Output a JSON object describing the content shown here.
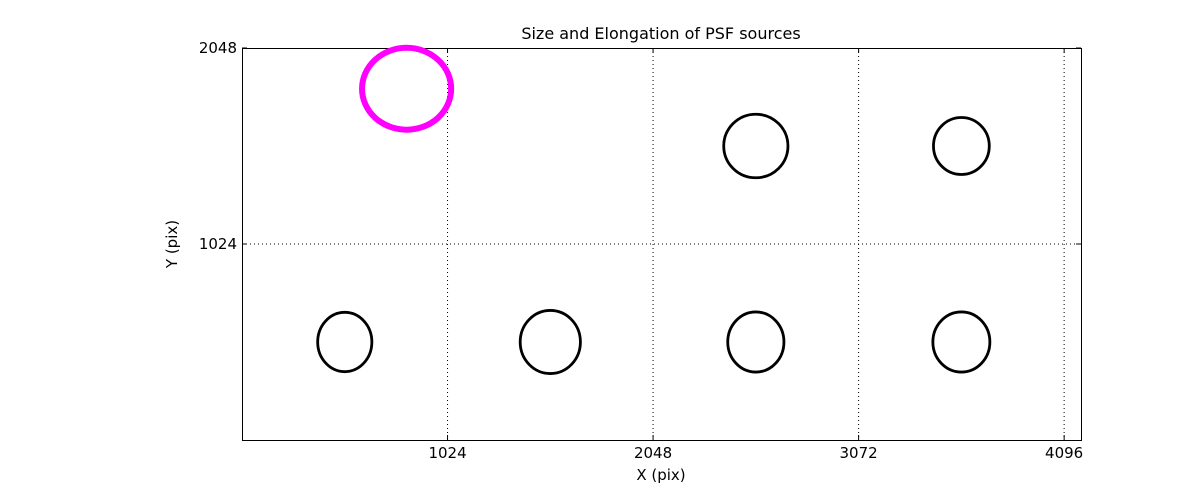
{
  "chart_data": {
    "type": "scatter",
    "title": "Size and Elongation of PSF sources",
    "xlabel": "X (pix)",
    "ylabel": "Y (pix)",
    "xlim": [
      0,
      4180
    ],
    "ylim": [
      0,
      2048
    ],
    "xticks": [
      1024,
      2048,
      3072,
      4096
    ],
    "yticks": [
      1024,
      2048
    ],
    "grid": true,
    "grid_linestyle": "dotted",
    "legend_position": "none",
    "colors": {
      "normal_source": "#000000",
      "flagged_source": "#FF00FF",
      "axis": "#000000",
      "background": "#FFFFFF"
    },
    "sources": [
      {
        "x": 512,
        "y": 512,
        "semi_x": 135,
        "semi_y": 155,
        "color": "#000000",
        "linewidth": 2.8,
        "flagged": false
      },
      {
        "x": 1536,
        "y": 512,
        "semi_x": 150,
        "semi_y": 165,
        "color": "#000000",
        "linewidth": 2.8,
        "flagged": false
      },
      {
        "x": 2560,
        "y": 512,
        "semi_x": 140,
        "semi_y": 157,
        "color": "#000000",
        "linewidth": 2.8,
        "flagged": false
      },
      {
        "x": 3584,
        "y": 512,
        "semi_x": 142,
        "semi_y": 157,
        "color": "#000000",
        "linewidth": 2.8,
        "flagged": false
      },
      {
        "x": 2560,
        "y": 1536,
        "semi_x": 160,
        "semi_y": 166,
        "color": "#000000",
        "linewidth": 2.8,
        "flagged": false
      },
      {
        "x": 3584,
        "y": 1536,
        "semi_x": 139,
        "semi_y": 149,
        "color": "#000000",
        "linewidth": 2.8,
        "flagged": false
      },
      {
        "x": 820,
        "y": 1835,
        "semi_x": 222,
        "semi_y": 214,
        "color": "#FF00FF",
        "linewidth": 6,
        "flagged": true
      }
    ]
  }
}
